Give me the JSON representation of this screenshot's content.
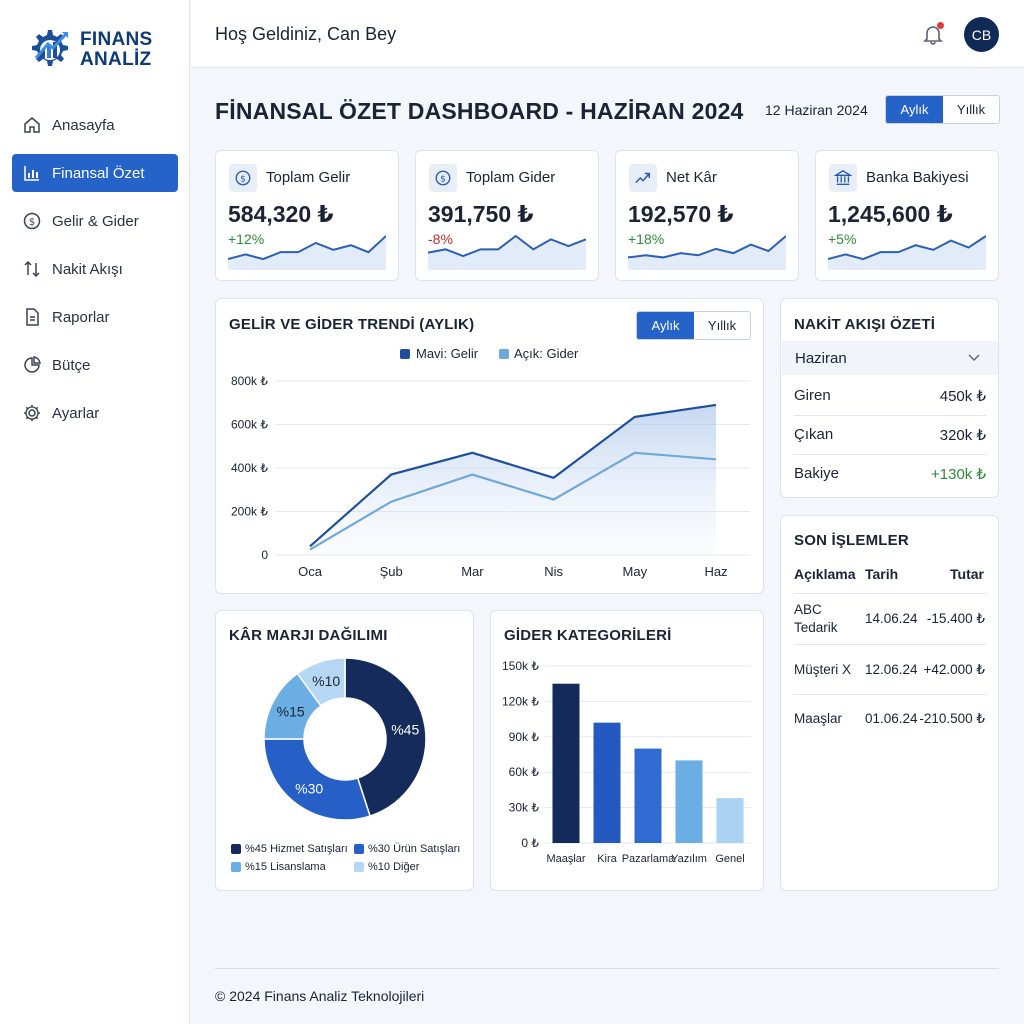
{
  "brand": {
    "line1": "FINANS",
    "line2": "ANALİZ",
    "primary": "#0f3a78",
    "accent": "#2563c9"
  },
  "sidebar": {
    "items": [
      {
        "label": "Anasayfa",
        "icon": "home-icon",
        "active": false
      },
      {
        "label": "Finansal Özet",
        "icon": "bar-chart-icon",
        "active": true
      },
      {
        "label": "Gelir & Gider",
        "icon": "dollar-circle-icon",
        "active": false
      },
      {
        "label": "Nakit Akışı",
        "icon": "swap-arrows-icon",
        "active": false
      },
      {
        "label": "Raporlar",
        "icon": "document-icon",
        "active": false
      },
      {
        "label": "Bütçe",
        "icon": "pie-icon",
        "active": false
      },
      {
        "label": "Ayarlar",
        "icon": "gear-icon",
        "active": false
      }
    ]
  },
  "header": {
    "greeting": "Hoş Geldiniz, Can Bey",
    "avatar_initials": "CB",
    "notification_dot": true
  },
  "page": {
    "title": "FİNANSAL ÖZET DASHBOARD - HAZİRAN 2024",
    "date": "12 Haziran 2024",
    "period_toggle": {
      "monthly": "Aylık",
      "yearly": "Yıllık",
      "selected": "Aylık"
    }
  },
  "kpis": [
    {
      "label": "Toplam Gelir",
      "value": "584,320 ₺",
      "change": "+12%",
      "trend": "pos",
      "icon": "dollar-circle-icon",
      "spark": [
        3,
        5,
        3,
        6,
        6,
        10,
        7,
        9,
        6,
        13
      ]
    },
    {
      "label": "Toplam Gider",
      "value": "391,750 ₺",
      "change": "-8%",
      "trend": "neg",
      "icon": "dollar-circle-icon",
      "spark": [
        4,
        5,
        3,
        5,
        5,
        9,
        5,
        8,
        6,
        8
      ]
    },
    {
      "label": "Net Kâr",
      "value": "192,570 ₺",
      "change": "+18%",
      "trend": "pos",
      "icon": "trend-up-icon",
      "spark": [
        4,
        5,
        4,
        6,
        5,
        8,
        6,
        10,
        7,
        14
      ]
    },
    {
      "label": "Banka Bakiyesi",
      "value": "1,245,600 ₺",
      "change": "+5%",
      "trend": "pos",
      "icon": "bank-icon",
      "spark": [
        3,
        5,
        3,
        6,
        6,
        9,
        7,
        11,
        8,
        13
      ]
    }
  ],
  "trend_chart": {
    "title": "GELİR VE GİDER TRENDİ (AYLIK)",
    "toggle": {
      "monthly": "Aylık",
      "yearly": "Yıllık",
      "selected": "Aylık"
    },
    "legend": [
      "Mavi: Gelir",
      "Açık: Gider"
    ]
  },
  "cash_flow": {
    "title": "NAKİT AKIŞI ÖZETİ",
    "month": "Haziran",
    "rows": [
      {
        "label": "Giren",
        "value": "450k ₺"
      },
      {
        "label": "Çıkan",
        "value": "320k ₺"
      },
      {
        "label": "Bakiye",
        "value": "+130k ₺"
      }
    ]
  },
  "transactions": {
    "title": "SON İŞLEMLER",
    "headers": [
      "Açıklama",
      "Tarih",
      "Tutar"
    ],
    "rows": [
      {
        "desc1": "ABC",
        "desc2": "Tedarik",
        "date": "14.06.24",
        "amount": "-15.400 ₺"
      },
      {
        "desc1": "Müşteri X",
        "desc2": "",
        "date": "12.06.24",
        "amount": "+42.000 ₺"
      },
      {
        "desc1": "Maaşlar",
        "desc2": "",
        "date": "01.06.24",
        "amount": "-210.500 ₺"
      }
    ]
  },
  "profit_chart": {
    "title": "KÂR MARJI DAĞILIMI",
    "legend": [
      "%45 Hizmet Satışları",
      "%30 Ürün Satışları",
      "%15 Lisanslama",
      "%10 Diğer"
    ]
  },
  "expense_chart": {
    "title": "GİDER KATEGORİLERİ"
  },
  "footer": {
    "text": "© 2024 Finans Analiz Teknolojileri"
  },
  "chart_data": [
    {
      "type": "area",
      "title": "GELİR VE GİDER TRENDİ (AYLIK)",
      "categories": [
        "Oca",
        "Şub",
        "Mar",
        "Nis",
        "May",
        "Haz"
      ],
      "series": [
        {
          "name": "Mavi: Gelir",
          "values": [
            40,
            370,
            470,
            355,
            635,
            690
          ],
          "color": "#1f4f9c"
        },
        {
          "name": "Açık: Gider",
          "values": [
            25,
            245,
            370,
            255,
            470,
            440
          ],
          "color": "#6ea8dc"
        }
      ],
      "y_ticks": [
        "0",
        "200k ₺",
        "400k ₺",
        "600k ₺",
        "800k ₺"
      ],
      "ylim": [
        0,
        800
      ],
      "grid": true,
      "legend_position": "top-center"
    },
    {
      "type": "pie",
      "title": "KÂR MARJI DAĞILIMI",
      "labels": [
        "Hizmet Satışları",
        "Ürün Satışları",
        "Lisanslama",
        "Diğer"
      ],
      "slice_labels": [
        "%45",
        "%30",
        "%15",
        "%10"
      ],
      "values": [
        45,
        30,
        15,
        10
      ],
      "colors": [
        "#142b5c",
        "#2660c6",
        "#6aaee3",
        "#b6d7f4"
      ],
      "donut": true,
      "legend_position": "bottom"
    },
    {
      "type": "bar",
      "title": "GİDER KATEGORİLERİ",
      "categories": [
        "Maaşlar",
        "Kira",
        "Pazarlama",
        "Yazılım",
        "Genel"
      ],
      "values": [
        135,
        102,
        80,
        70,
        38
      ],
      "colors": [
        "#132a5a",
        "#2459c0",
        "#2f6bd1",
        "#6aaee3",
        "#a9d2f3"
      ],
      "y_ticks": [
        "0 ₺",
        "30k ₺",
        "60k ₺",
        "90k ₺",
        "120k ₺",
        "150k ₺"
      ],
      "ylim": [
        0,
        150
      ],
      "grid": true
    }
  ]
}
